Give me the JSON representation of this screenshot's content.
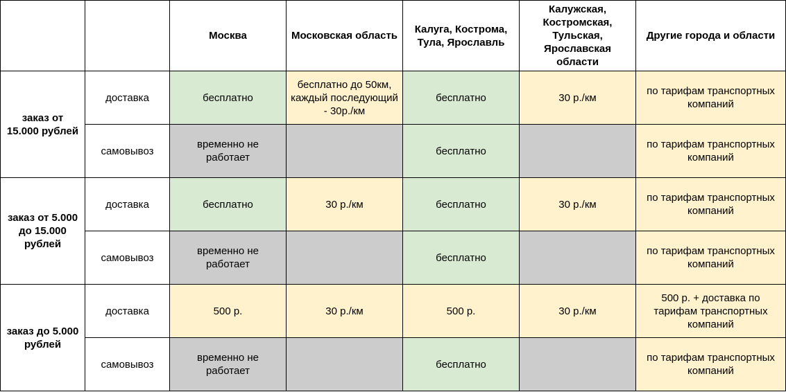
{
  "colors": {
    "green": "#d9ead3",
    "yellow": "#fff2cc",
    "gray": "#cccccc",
    "white": "#ffffff",
    "border": "#000000"
  },
  "header": {
    "columns": [
      "",
      "",
      "Москва",
      "Московская область",
      "Калуга, Кострома, Тула, Ярославль",
      "Калужская, Костромская, Тульская, Ярославская области",
      "Другие города и области"
    ]
  },
  "groups": [
    {
      "label": "заказ от 15.000 рублей",
      "rows": [
        {
          "type": "доставка",
          "cells": [
            {
              "text": "бесплатно",
              "color": "green"
            },
            {
              "text": "бесплатно до 50км, каждый последующий - 30р./км",
              "color": "yellow"
            },
            {
              "text": "бесплатно",
              "color": "green"
            },
            {
              "text": "30 р./км",
              "color": "yellow"
            },
            {
              "text": "по тарифам транспортных компаний",
              "color": "yellow"
            }
          ]
        },
        {
          "type": "самовывоз",
          "cells": [
            {
              "text": "временно не работает",
              "color": "gray"
            },
            {
              "text": "",
              "color": "gray"
            },
            {
              "text": "бесплатно",
              "color": "green"
            },
            {
              "text": "",
              "color": "gray"
            },
            {
              "text": "по тарифам транспортных компаний",
              "color": "yellow"
            }
          ]
        }
      ]
    },
    {
      "label": "заказ от 5.000 до 15.000 рублей",
      "rows": [
        {
          "type": "доставка",
          "cells": [
            {
              "text": "бесплатно",
              "color": "green"
            },
            {
              "text": "30 р./км",
              "color": "yellow"
            },
            {
              "text": "бесплатно",
              "color": "green"
            },
            {
              "text": "30 р./км",
              "color": "yellow"
            },
            {
              "text": "по тарифам транспортных компаний",
              "color": "yellow"
            }
          ]
        },
        {
          "type": "самовывоз",
          "cells": [
            {
              "text": "временно не работает",
              "color": "gray"
            },
            {
              "text": "",
              "color": "gray"
            },
            {
              "text": "бесплатно",
              "color": "green"
            },
            {
              "text": "",
              "color": "gray"
            },
            {
              "text": "по тарифам транспортных компаний",
              "color": "yellow"
            }
          ]
        }
      ]
    },
    {
      "label": "заказ до 5.000 рублей",
      "rows": [
        {
          "type": "доставка",
          "cells": [
            {
              "text": "500 р.",
              "color": "yellow"
            },
            {
              "text": "30 р./км",
              "color": "yellow"
            },
            {
              "text": "500 р.",
              "color": "yellow"
            },
            {
              "text": "30 р./км",
              "color": "yellow"
            },
            {
              "text": "500 р. + доставка по тарифам транспортных компаний",
              "color": "yellow"
            }
          ]
        },
        {
          "type": "самовывоз",
          "cells": [
            {
              "text": "временно не работает",
              "color": "gray"
            },
            {
              "text": "",
              "color": "gray"
            },
            {
              "text": "бесплатно",
              "color": "green"
            },
            {
              "text": "",
              "color": "gray"
            },
            {
              "text": "по тарифам транспортных компаний",
              "color": "yellow"
            }
          ]
        }
      ]
    }
  ]
}
